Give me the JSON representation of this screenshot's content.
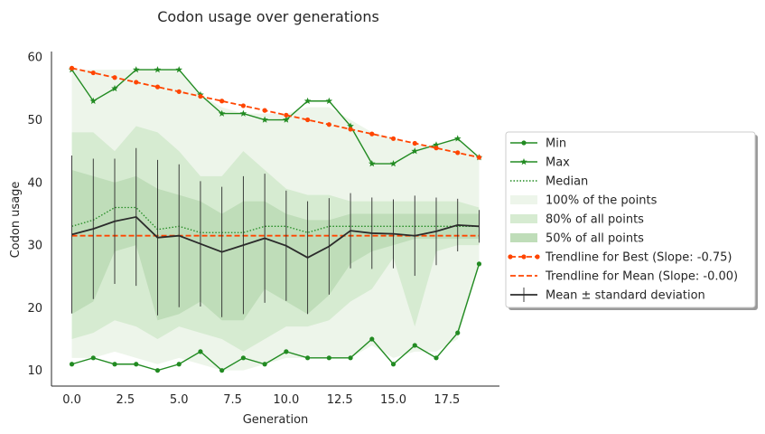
{
  "chart_data": {
    "type": "line",
    "title": "Codon usage over generations",
    "xlabel": "Generation",
    "ylabel": "Codon usage",
    "xlim": [
      -0.95,
      19.95
    ],
    "ylim": [
      7.5,
      60.9
    ],
    "xticks": [
      0,
      2.5,
      5,
      7.5,
      10,
      12.5,
      15,
      17.5
    ],
    "xtick_labels": [
      "0.0",
      "2.5",
      "5.0",
      "7.5",
      "10.0",
      "12.5",
      "15.0",
      "17.5"
    ],
    "yticks": [
      10,
      20,
      30,
      40,
      50,
      60
    ],
    "ytick_labels": [
      "10",
      "20",
      "30",
      "40",
      "50",
      "60"
    ],
    "grid": false,
    "legend_position": "right",
    "x": [
      0,
      1,
      2,
      3,
      4,
      5,
      6,
      7,
      8,
      9,
      10,
      11,
      12,
      13,
      14,
      15,
      16,
      17,
      18,
      19
    ],
    "bands": [
      {
        "name": "100% of the points",
        "color": "#edf5ea",
        "lower": [
          12,
          12,
          13,
          12,
          11,
          12,
          11,
          10,
          10,
          11,
          12,
          12,
          12,
          12,
          14,
          12,
          13,
          13,
          15,
          27
        ],
        "upper": [
          58,
          58,
          58,
          58,
          58,
          58,
          54,
          52,
          51,
          51,
          51,
          52,
          52,
          50,
          48,
          47,
          46,
          46,
          47,
          44
        ]
      },
      {
        "name": "80% of all points",
        "color": "#d6ebd1",
        "lower": [
          15,
          16,
          18,
          17,
          15,
          17,
          16,
          15,
          13,
          15,
          17,
          17,
          18,
          21,
          23,
          28,
          17,
          29,
          30,
          30
        ],
        "upper": [
          48,
          48,
          45,
          49,
          48,
          45,
          41,
          41,
          45,
          42,
          39,
          38,
          38,
          37,
          37,
          37,
          37,
          37,
          37,
          36
        ]
      },
      {
        "name": "50% of all points",
        "color": "#bfddb9",
        "lower": [
          19,
          21,
          29,
          30,
          18,
          19,
          21,
          18,
          18,
          23,
          21,
          19,
          22,
          27,
          29,
          30,
          31,
          31,
          31,
          31
        ],
        "upper": [
          42,
          41,
          40,
          41,
          39,
          38,
          37,
          35,
          37,
          37,
          35,
          34,
          34,
          35,
          35,
          35,
          35,
          35,
          35,
          35
        ]
      }
    ],
    "series": [
      {
        "name": "Min",
        "color": "#228b22",
        "style": "solid",
        "marker": "dot",
        "values": [
          11,
          12,
          11,
          11,
          10,
          11,
          13,
          10,
          12,
          11,
          13,
          12,
          12,
          12,
          15,
          11,
          14,
          12,
          16,
          27
        ]
      },
      {
        "name": "Max",
        "color": "#228b22",
        "style": "solid",
        "marker": "star",
        "values": [
          58,
          53,
          55,
          58,
          58,
          58,
          54,
          51,
          51,
          50,
          50,
          53,
          53,
          49,
          43,
          43,
          45,
          46,
          47,
          44
        ]
      },
      {
        "name": "Median",
        "color": "#228b22",
        "style": "dotted",
        "marker": "none",
        "values": [
          33,
          34,
          36,
          36,
          32.5,
          33,
          32,
          32,
          32,
          33,
          33,
          32,
          33,
          33,
          33,
          33,
          33,
          33,
          33,
          33
        ]
      },
      {
        "name": "Trendline for Best (Slope: -0.75)",
        "color": "#ff4500",
        "style": "dashed",
        "marker": "dot",
        "values": [
          58.25,
          57.5,
          56.75,
          56,
          55.25,
          54.5,
          53.75,
          53,
          52.25,
          51.5,
          50.75,
          50,
          49.25,
          48.5,
          47.75,
          47,
          46.25,
          45.5,
          44.75,
          44
        ]
      },
      {
        "name": "Trendline for Mean (Slope: -0.00)",
        "color": "#ff4500",
        "style": "dashed",
        "marker": "none",
        "values": [
          31.5,
          31.5,
          31.5,
          31.5,
          31.5,
          31.5,
          31.5,
          31.5,
          31.5,
          31.5,
          31.5,
          31.5,
          31.5,
          31.5,
          31.5,
          31.5,
          31.5,
          31.5,
          31.5,
          31.5
        ]
      },
      {
        "name": "Mean ± standard deviation",
        "color": "#2b2b2b",
        "style": "solid",
        "marker": "errorbar",
        "values": [
          31.7,
          32.6,
          33.8,
          34.5,
          31.2,
          31.5,
          30.2,
          28.9,
          30,
          31.1,
          29.9,
          28,
          29.8,
          32.3,
          31.9,
          31.8,
          31.5,
          32.2,
          33.2,
          33
        ],
        "error": [
          12.6,
          11.2,
          10,
          11,
          12.4,
          11.4,
          10,
          10.4,
          11,
          10.3,
          8.8,
          9,
          7.7,
          6,
          5.7,
          5.5,
          6.4,
          5.4,
          4.2,
          2.6
        ]
      }
    ],
    "legend": [
      {
        "label": "Min",
        "kind": "line",
        "color": "#228b22",
        "style": "solid",
        "marker": "dot"
      },
      {
        "label": "Max",
        "kind": "line",
        "color": "#228b22",
        "style": "solid",
        "marker": "star"
      },
      {
        "label": "Median",
        "kind": "line",
        "color": "#228b22",
        "style": "dotted",
        "marker": "none"
      },
      {
        "label": "100% of the points",
        "kind": "patch",
        "color": "#edf5ea"
      },
      {
        "label": "80% of all points",
        "kind": "patch",
        "color": "#d6ebd1"
      },
      {
        "label": "50% of all points",
        "kind": "patch",
        "color": "#bfddb9"
      },
      {
        "label": "Trendline for Best (Slope: -0.75)",
        "kind": "line",
        "color": "#ff4500",
        "style": "dashed",
        "marker": "dot"
      },
      {
        "label": "Trendline for Mean (Slope: -0.00)",
        "kind": "line",
        "color": "#ff4500",
        "style": "dashed",
        "marker": "none"
      },
      {
        "label": "Mean ± standard deviation",
        "kind": "line",
        "color": "#2b2b2b",
        "style": "solid",
        "marker": "errorbar"
      }
    ]
  }
}
